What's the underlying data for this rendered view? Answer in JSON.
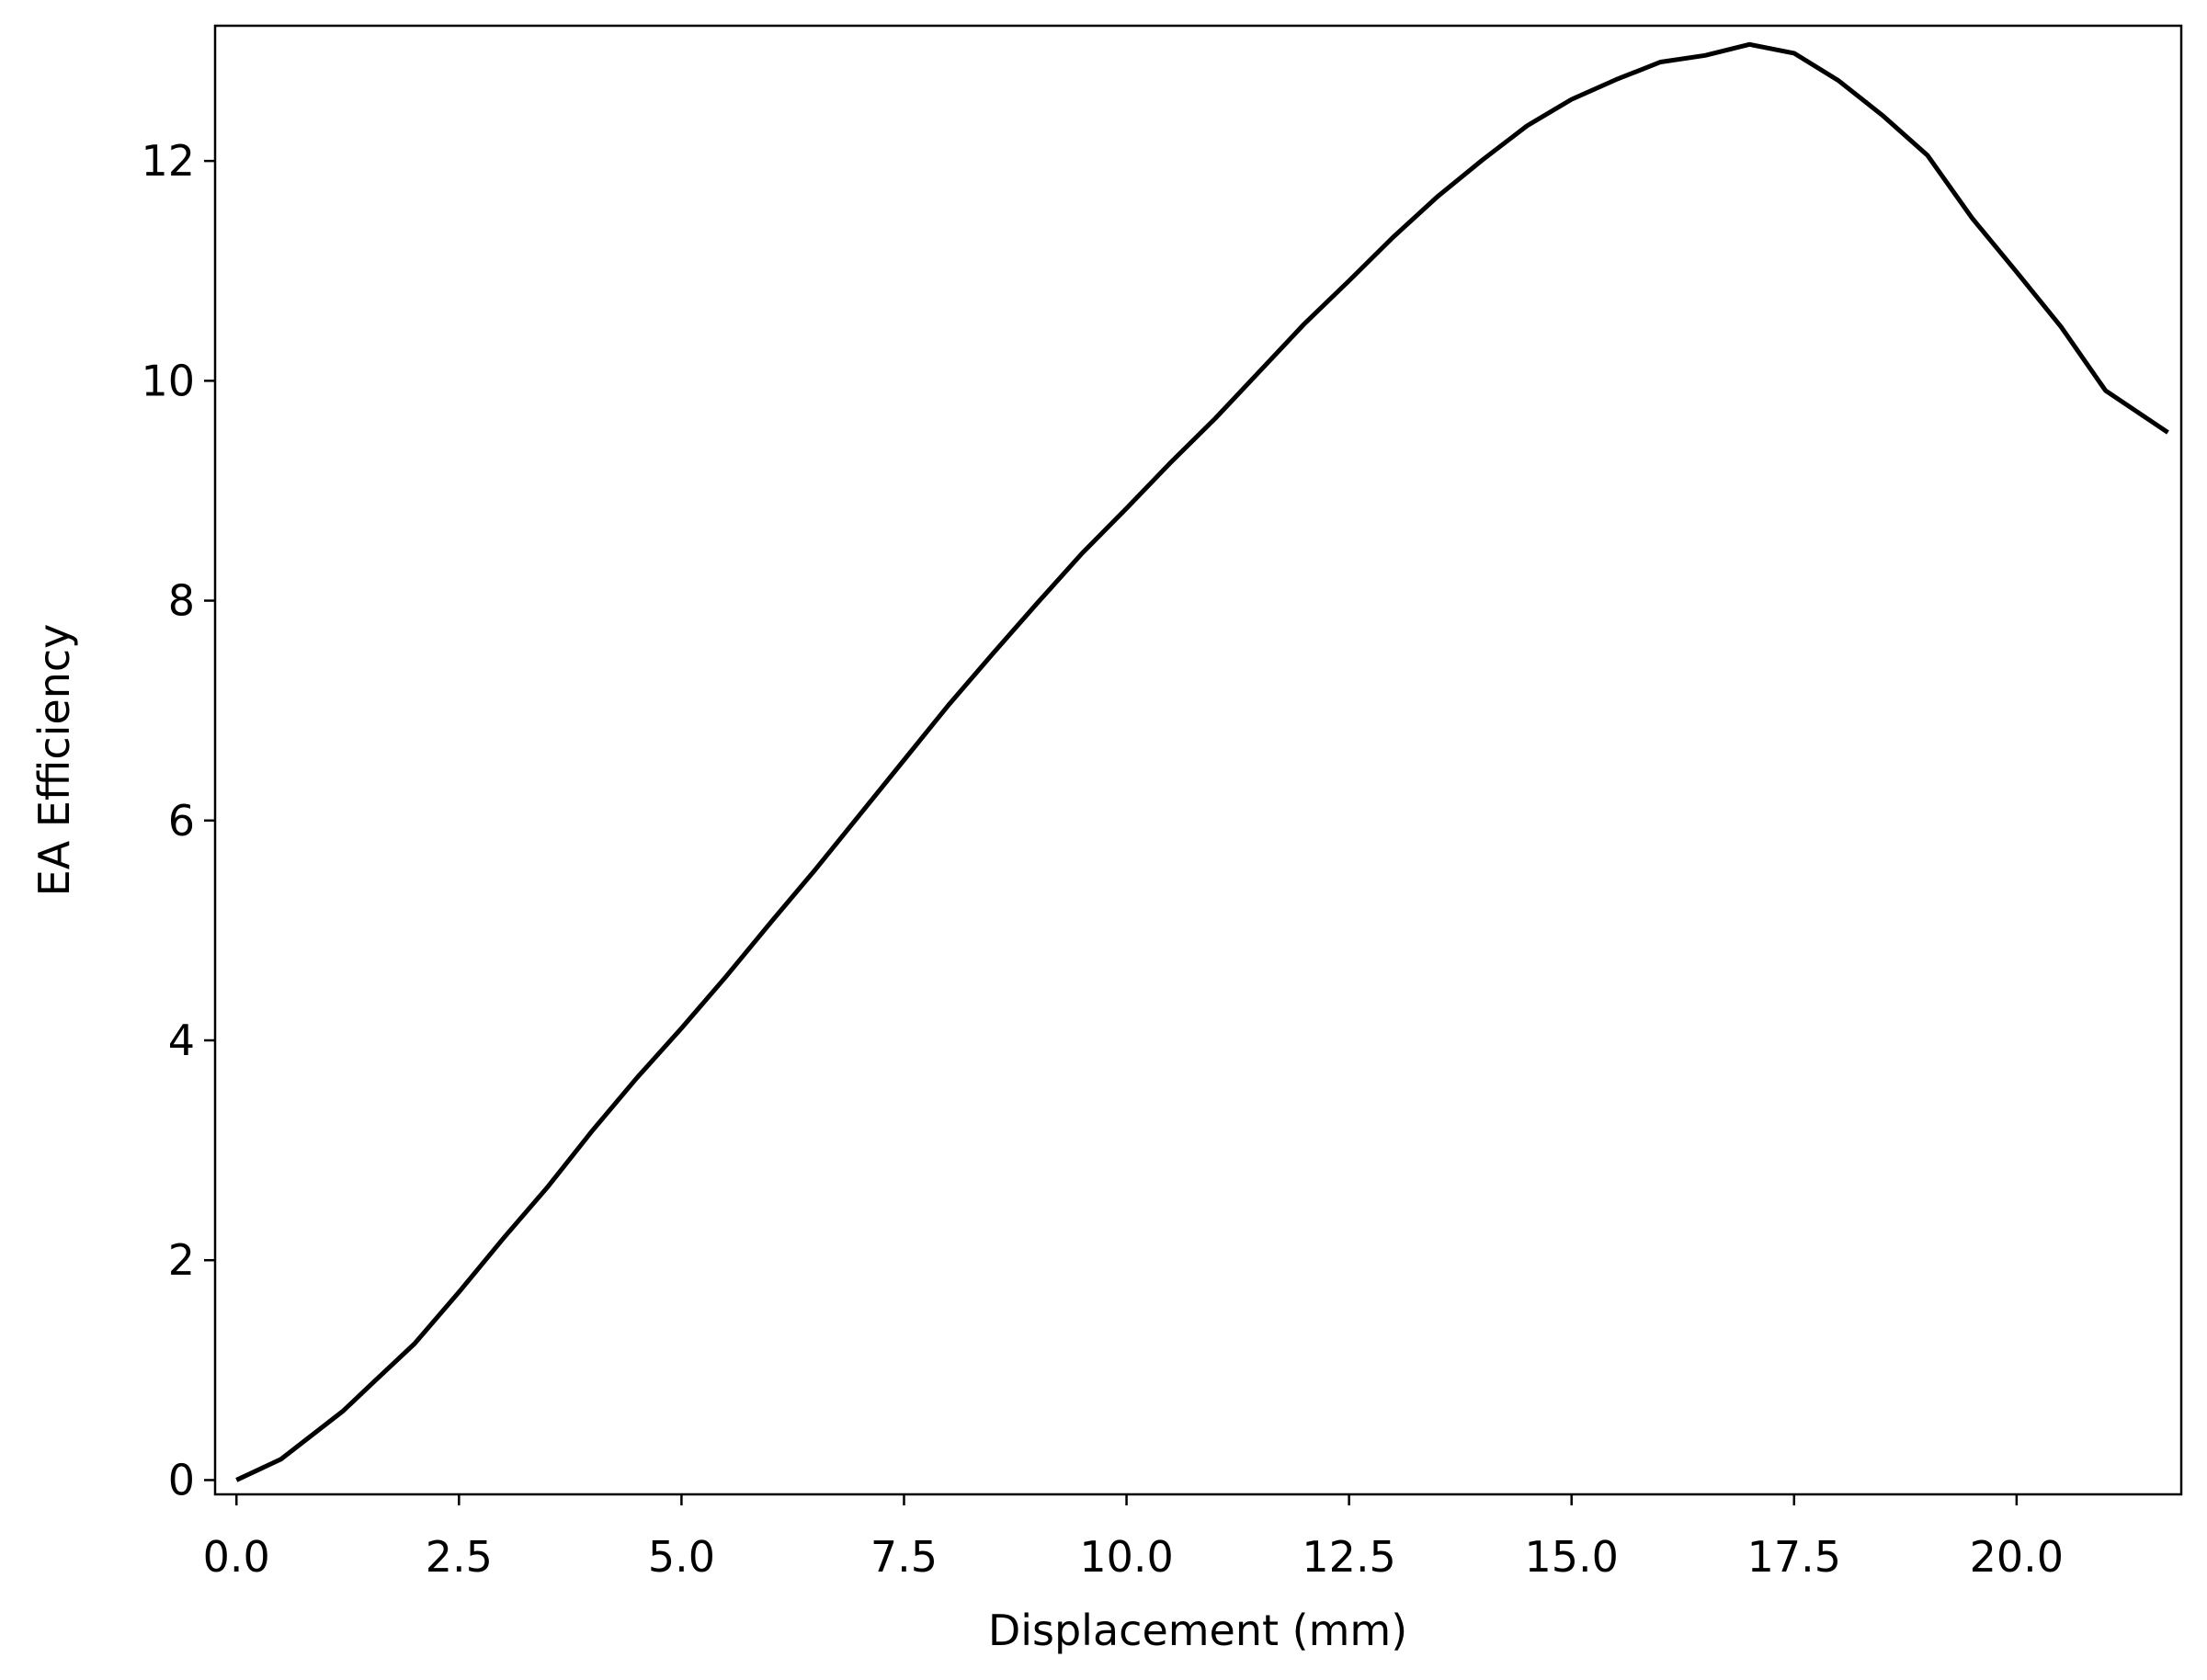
{
  "chart_data": {
    "type": "line",
    "xlabel": "Displacement (mm)",
    "ylabel": "EA Efficiency",
    "x": [
      0,
      0.5,
      1.2,
      1.5,
      2.0,
      2.5,
      3.0,
      3.5,
      4.0,
      4.5,
      5.0,
      5.5,
      6.0,
      6.5,
      7.0,
      7.5,
      8.0,
      8.5,
      9.0,
      9.5,
      10.0,
      10.5,
      11.0,
      11.5,
      12.0,
      12.5,
      13.0,
      13.5,
      14.0,
      14.5,
      15.0,
      15.5,
      16.0,
      16.5,
      17.0,
      17.5,
      18.0,
      18.5,
      19.0,
      19.5,
      20.0,
      20.5,
      21.0,
      21.7
    ],
    "series": [
      {
        "color": "#000000",
        "values": [
          0,
          0.19,
          0.63,
          0.86,
          1.24,
          1.71,
          2.2,
          2.67,
          3.18,
          3.66,
          4.11,
          4.58,
          5.07,
          5.55,
          6.05,
          6.55,
          7.05,
          7.52,
          7.98,
          8.43,
          8.84,
          9.26,
          9.66,
          10.09,
          10.52,
          10.91,
          11.31,
          11.68,
          12.01,
          12.32,
          12.56,
          12.74,
          12.9,
          12.96,
          13.06,
          12.98,
          12.73,
          12.41,
          12.05,
          11.48,
          10.99,
          10.49,
          9.91,
          9.53
        ]
      }
    ],
    "xlim": [
      -0.24,
      21.85
    ],
    "ylim": [
      -0.13,
      13.23
    ],
    "xticks": [
      {
        "value": 0,
        "label": "0.0"
      },
      {
        "value": 2.5,
        "label": "2.5"
      },
      {
        "value": 5,
        "label": "5.0"
      },
      {
        "value": 7.5,
        "label": "7.5"
      },
      {
        "value": 10,
        "label": "10.0"
      },
      {
        "value": 12.5,
        "label": "12.5"
      },
      {
        "value": 15,
        "label": "15.0"
      },
      {
        "value": 17.5,
        "label": "17.5"
      },
      {
        "value": 20,
        "label": "20.0"
      }
    ],
    "yticks": [
      0,
      2,
      4,
      6,
      8,
      10,
      12
    ],
    "grid": false
  }
}
